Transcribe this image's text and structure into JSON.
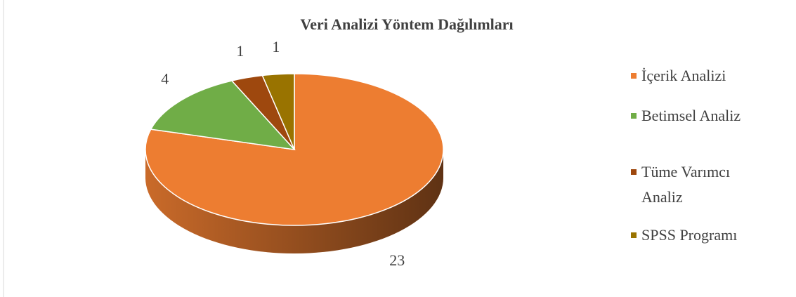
{
  "chart_data": {
    "type": "pie",
    "title": "Veri Analizi Yöntem Dağılımları",
    "categories": [
      "İçerik Analizi",
      "Betimsel Analiz",
      "Tüme Varımcı Analiz",
      "SPSS Programı"
    ],
    "values": [
      23,
      4,
      1,
      1
    ],
    "colors": [
      "#ed7d31",
      "#70ad47",
      "#9e480e",
      "#997300"
    ],
    "legend": "right"
  }
}
